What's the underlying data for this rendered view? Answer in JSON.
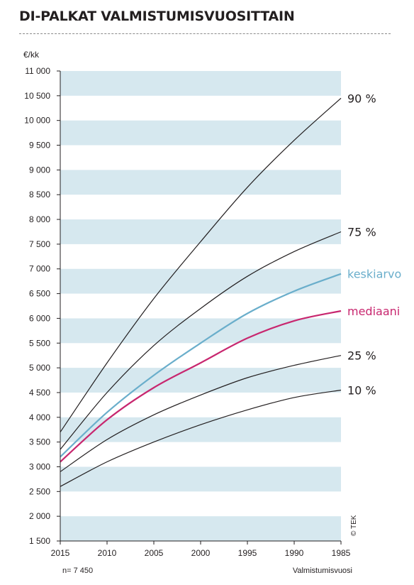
{
  "title": "DI-PALKAT VALMISTUMISVUOSITTAIN",
  "unit_label": "€/kk",
  "sample_size_label": "n= 7 450",
  "xlabel": "Valmistumisvuosi",
  "copyright": "© TEK",
  "colors": {
    "band": "#d6e8ef",
    "percentile": "#231f20",
    "keskiarvo": "#6aaecb",
    "mediaani": "#c8276f"
  },
  "chart_data": {
    "type": "line",
    "title": "DI-PALKAT VALMISTUMISVUOSITTAIN",
    "xlabel": "Valmistumisvuosi",
    "ylabel": "€/kk",
    "xlim": [
      2015,
      1985
    ],
    "ylim": [
      1500,
      11000
    ],
    "x_reversed": true,
    "x_ticks": [
      2015,
      2010,
      2005,
      2000,
      1995,
      1990,
      1985
    ],
    "y_ticks": [
      11000,
      10500,
      10000,
      9500,
      9000,
      8500,
      8000,
      7500,
      7000,
      6500,
      6000,
      5500,
      5000,
      4500,
      4000,
      3500,
      3000,
      2500,
      2000,
      1500
    ],
    "y_tick_labels": [
      "11 000",
      "10 500",
      "10 000",
      "9 500",
      "9 000",
      "8 500",
      "8 000",
      "7 500",
      "7 000",
      "6 500",
      "6 000",
      "5 500",
      "5 000",
      "4 500",
      "4 000",
      "3 500",
      "3 000",
      "2 500",
      "2 000",
      "1 500"
    ],
    "grid": "alternating horizontal bands",
    "legend": "labels at right end of lines",
    "x": [
      2015,
      2010,
      2005,
      2000,
      1995,
      1990,
      1985
    ],
    "series": [
      {
        "name": "90 %",
        "key": "p90",
        "values": [
          3700,
          5100,
          6400,
          7550,
          8650,
          9600,
          10450
        ]
      },
      {
        "name": "75 %",
        "key": "p75",
        "values": [
          3350,
          4500,
          5450,
          6200,
          6850,
          7350,
          7750
        ]
      },
      {
        "name": "keskiarvo",
        "key": "keskiarvo",
        "values": [
          3200,
          4100,
          4850,
          5500,
          6100,
          6550,
          6900
        ]
      },
      {
        "name": "mediaani",
        "key": "mediaani",
        "values": [
          3100,
          3950,
          4600,
          5100,
          5600,
          5950,
          6150
        ]
      },
      {
        "name": "25 %",
        "key": "p25",
        "values": [
          2900,
          3550,
          4050,
          4450,
          4800,
          5050,
          5250
        ]
      },
      {
        "name": "10 %",
        "key": "p10",
        "values": [
          2600,
          3100,
          3500,
          3850,
          4150,
          4400,
          4550
        ]
      }
    ]
  }
}
